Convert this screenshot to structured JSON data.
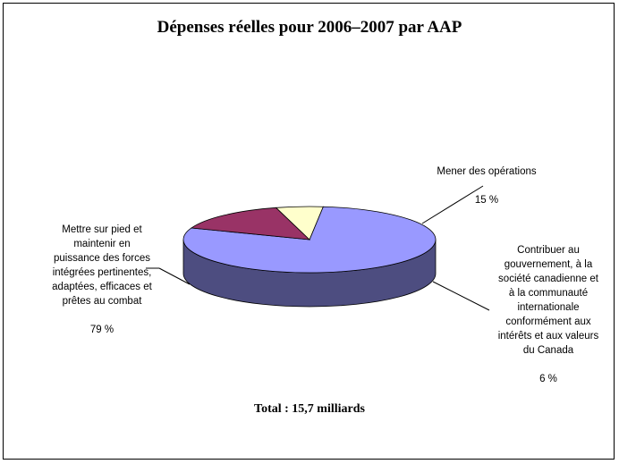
{
  "chart_data": {
    "type": "pie",
    "title": "Dépenses réelles pour 2006–2007 par AAP",
    "slices": [
      {
        "label": "Mettre sur pied et\nmaintenir en\npuissance des forces\nintégrées pertinentes,\nadaptées, efficaces et\nprêtes au combat",
        "pct_label": "79 %",
        "value": 79,
        "color": "#9999ff"
      },
      {
        "label": "Mener des opérations",
        "pct_label": "15 %",
        "value": 15,
        "color": "#993366"
      },
      {
        "label": "Contribuer  au\ngouvernement, à la\nsociété canadienne et\nà la communauté\ninternationale\nconformément aux\nintérêts et aux valeurs\ndu Canada",
        "pct_label": "6 %",
        "value": 6,
        "color": "#ffffcc"
      }
    ],
    "total": "Total : 15,7 milliards"
  }
}
